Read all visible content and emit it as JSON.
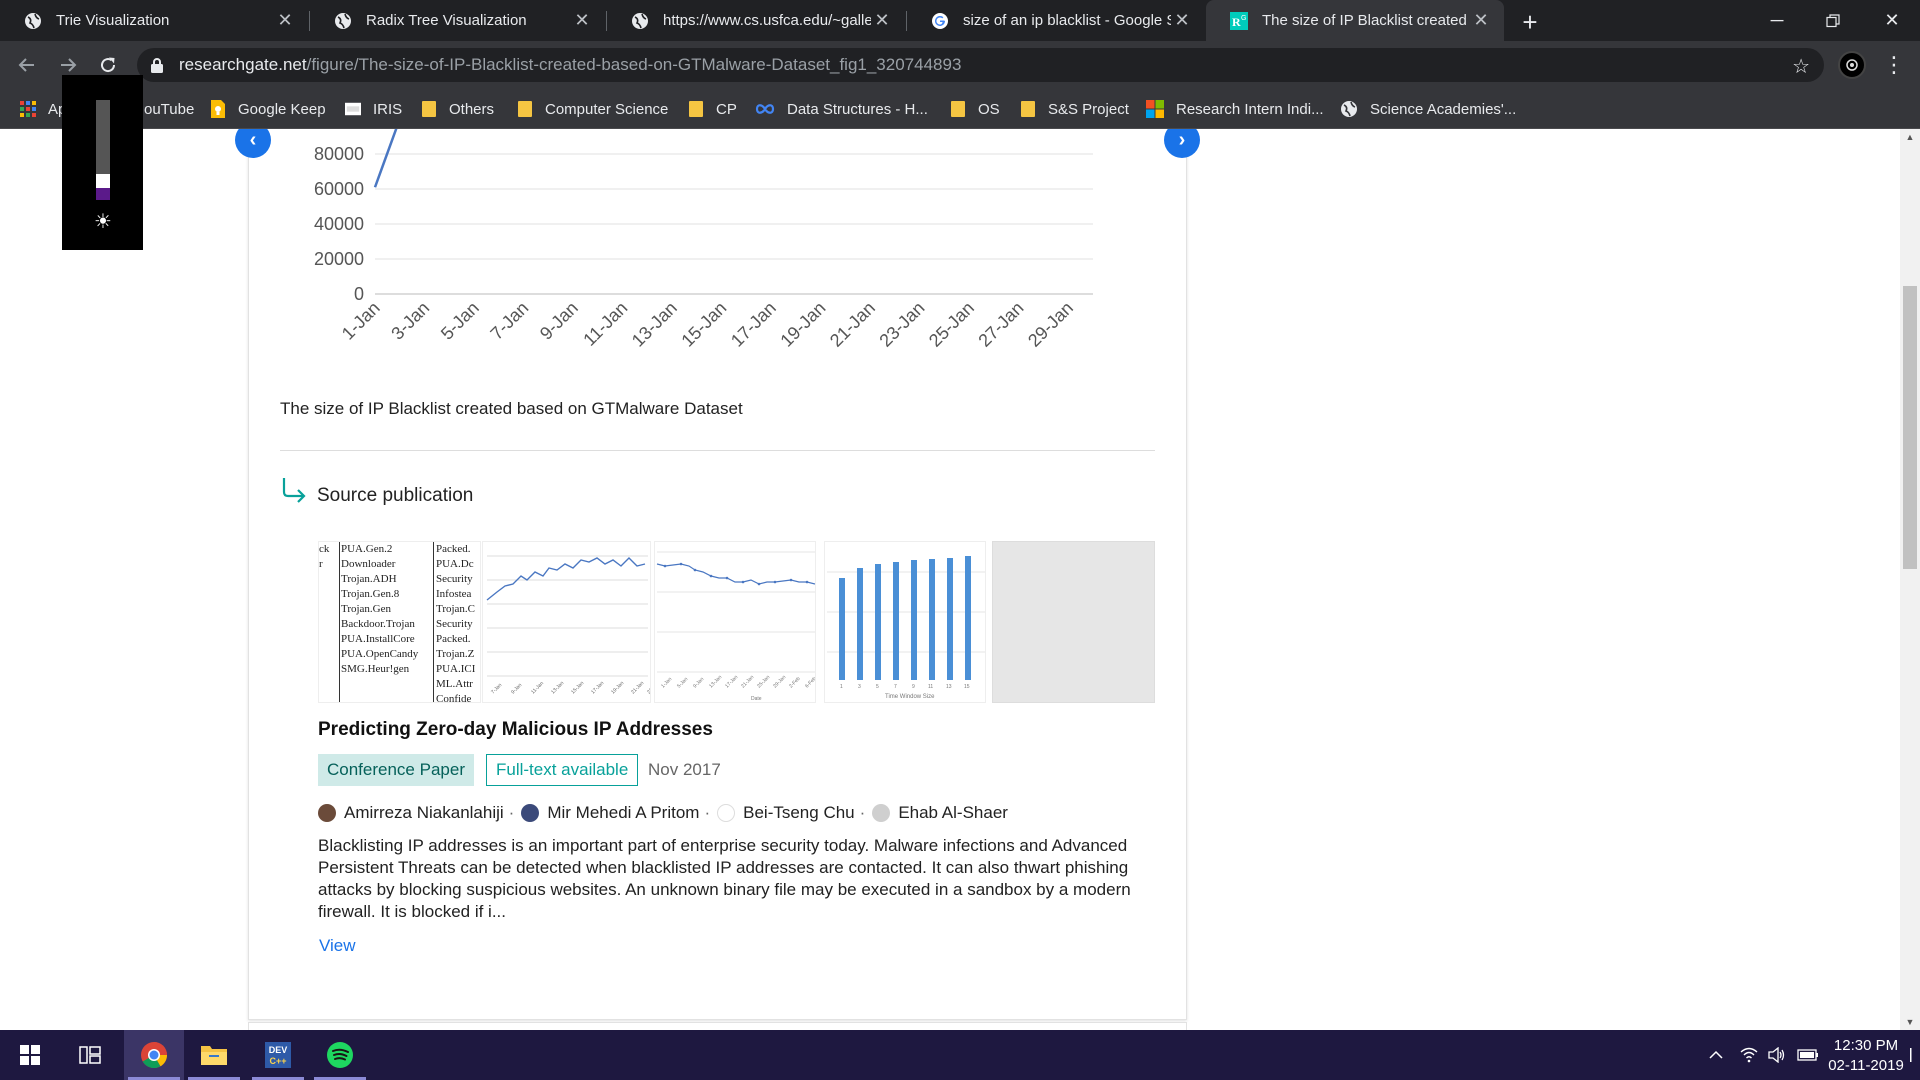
{
  "tabs": [
    {
      "title": "Trie Visualization",
      "icon": "globe-icon"
    },
    {
      "title": "Radix Tree Visualization",
      "icon": "globe-icon"
    },
    {
      "title": "https://www.cs.usfca.edu/~galles",
      "icon": "globe-icon"
    },
    {
      "title": "size of an ip blacklist - Google Se",
      "icon": "google-icon"
    },
    {
      "title": "The size of IP Blacklist created ba",
      "icon": "researchgate-icon",
      "active": true
    }
  ],
  "address_bar": {
    "domain": "researchgate.net",
    "path": "/figure/The-size-of-IP-Blacklist-created-based-on-GTMalware-Dataset_fig1_320744893"
  },
  "bookmarks": [
    {
      "label": "Ap",
      "icon": "apps-grid-icon"
    },
    {
      "label": "ouTube",
      "icon": "youtube-icon"
    },
    {
      "label": "Google Keep",
      "icon": "keep-icon"
    },
    {
      "label": "IRIS",
      "icon": "iris-icon"
    },
    {
      "label": "Others",
      "icon": "folder-icon"
    },
    {
      "label": "Computer Science",
      "icon": "folder-icon"
    },
    {
      "label": "CP",
      "icon": "folder-icon"
    },
    {
      "label": "Data Structures - H...",
      "icon": "infinity-icon"
    },
    {
      "label": "OS",
      "icon": "folder-icon"
    },
    {
      "label": "S&S Project",
      "icon": "folder-icon"
    },
    {
      "label": "Research Intern Indi...",
      "icon": "microsoft-icon"
    },
    {
      "label": "Science Academies'...",
      "icon": "globe-icon"
    }
  ],
  "brightness": {
    "level": 0.12
  },
  "chart_data": {
    "type": "line",
    "y_ticks": [
      "80000",
      "60000",
      "40000",
      "20000",
      "0"
    ],
    "x_ticks": [
      "1-Jan",
      "3-Jan",
      "5-Jan",
      "7-Jan",
      "9-Jan",
      "11-Jan",
      "13-Jan",
      "15-Jan",
      "17-Jan",
      "19-Jan",
      "21-Jan",
      "23-Jan",
      "25-Jan",
      "27-Jan",
      "29-Jan"
    ],
    "ylim": [
      0,
      80000
    ],
    "visible_series": {
      "x": [
        "1-Jan",
        "2-Jan"
      ],
      "y": [
        61000,
        100000
      ]
    },
    "line_color": "#4a77c2"
  },
  "figure": {
    "caption": "The size of IP Blacklist created based on GTMalware Dataset"
  },
  "source": {
    "heading": "Source publication",
    "thumb1_col1": [
      "PUA.Gen.2",
      "Downloader",
      "Trojan.ADH",
      "Trojan.Gen.8",
      "Trojan.Gen",
      "Backdoor.Trojan",
      "PUA.InstallCore",
      "PUA.OpenCandy",
      "SMG.Heur!gen"
    ],
    "thumb1_col0": [
      "",
      "",
      "",
      "",
      "",
      "",
      "ck",
      "r",
      ""
    ],
    "thumb1_col2": [
      "Packed.",
      "PUA.Dc",
      "Security",
      "Infostea",
      "Trojan.C",
      "Security",
      "Packed.",
      "Trojan.Z",
      "PUA.ICI",
      "ML.Attr",
      "Confide"
    ],
    "thumb4_xlabel": "Time Window Size",
    "thumb3_xlabel": "Date",
    "title": "Predicting Zero-day Malicious IP Addresses",
    "type_badge": "Conference Paper",
    "fulltext_badge": "Full-text available",
    "date": "Nov 2017",
    "authors": [
      "Amirreza Niakanlahiji",
      "Mir Mehedi A Pritom",
      "Bei-Tseng Chu",
      "Ehab Al-Shaer"
    ],
    "abstract": "Blacklisting IP addresses is an important part of enterprise security today. Malware infections and Advanced Persistent Threats can be detected when blacklisted IP addresses are contacted. It can also thwart phishing attacks by blocking suspicious websites. An unknown binary file may be executed in a sandbox by a modern firewall. It is blocked if i...",
    "view_link": "View"
  },
  "taskbar": {
    "time": "12:30 PM",
    "date": "02-11-2019"
  }
}
